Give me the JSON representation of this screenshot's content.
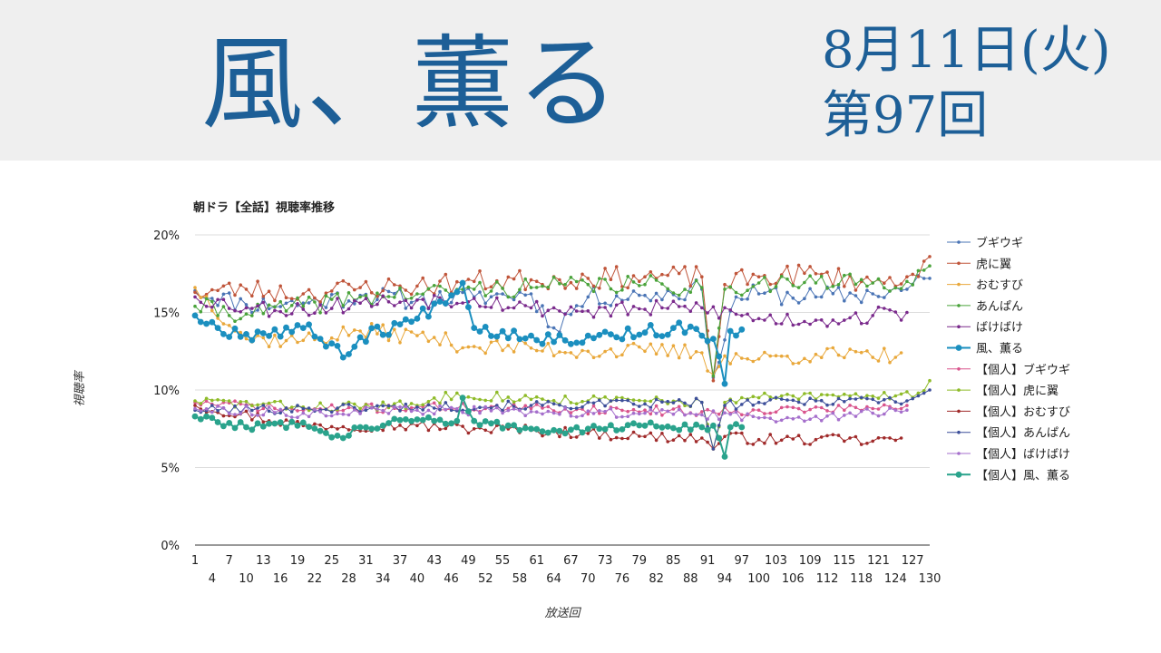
{
  "header": {
    "show_title": "風、薫る",
    "date": "8月11日(火)",
    "episode": "第97回"
  },
  "colors": {
    "banner_bg": "#efefef",
    "title_text": "#1d5f97"
  },
  "chart_data": {
    "type": "line",
    "title": "朝ドラ【全話】視聴率推移",
    "xlabel": "放送回",
    "ylabel": "視聴率",
    "ylim": [
      0,
      20
    ],
    "xlim": [
      1,
      130
    ],
    "grid": true,
    "legend_position": "right",
    "yticks": [
      "0%",
      "5%",
      "10%",
      "15%",
      "20%"
    ],
    "xticks_top": [
      "1",
      "7",
      "13",
      "19",
      "25",
      "31",
      "37",
      "43",
      "49",
      "55",
      "61",
      "67",
      "73",
      "79",
      "85",
      "91",
      "97",
      "103",
      "109",
      "115",
      "121",
      "127"
    ],
    "xticks_bottom": [
      "4",
      "10",
      "16",
      "22",
      "28",
      "34",
      "40",
      "46",
      "52",
      "58",
      "64",
      "70",
      "76",
      "82",
      "88",
      "94",
      "100",
      "106",
      "112",
      "118",
      "124",
      "130"
    ],
    "series": [
      {
        "name": "ブギウギ",
        "color": "#4a74b5",
        "width": 1,
        "r": 1.8,
        "keys": [
          [
            1,
            16.4
          ],
          [
            10,
            15.5
          ],
          [
            20,
            15.6
          ],
          [
            30,
            16.1
          ],
          [
            40,
            15.8
          ],
          [
            50,
            16.0
          ],
          [
            60,
            16.2
          ],
          [
            64,
            14.0
          ],
          [
            70,
            16.0
          ],
          [
            80,
            16.1
          ],
          [
            90,
            16.5
          ],
          [
            92,
            10.8
          ],
          [
            96,
            16.0
          ],
          [
            100,
            16.2
          ],
          [
            110,
            16.0
          ],
          [
            120,
            16.2
          ],
          [
            126,
            16.5
          ],
          [
            130,
            17.2
          ]
        ],
        "noise": 0.65,
        "seed": 11
      },
      {
        "name": "虎に翼",
        "color": "#c0553a",
        "width": 1,
        "r": 1.8,
        "keys": [
          [
            1,
            16.3
          ],
          [
            10,
            16.5
          ],
          [
            20,
            16.2
          ],
          [
            30,
            16.6
          ],
          [
            40,
            16.7
          ],
          [
            50,
            17.0
          ],
          [
            60,
            17.1
          ],
          [
            70,
            17.2
          ],
          [
            80,
            17.3
          ],
          [
            90,
            17.3
          ],
          [
            92,
            10.6
          ],
          [
            94,
            16.8
          ],
          [
            100,
            17.3
          ],
          [
            110,
            17.5
          ],
          [
            120,
            16.9
          ],
          [
            126,
            17.3
          ],
          [
            130,
            18.6
          ]
        ],
        "noise": 0.7,
        "seed": 23
      },
      {
        "name": "おむすび",
        "color": "#e9a83b",
        "width": 1,
        "r": 1.8,
        "keys": [
          [
            1,
            16.6
          ],
          [
            10,
            13.3
          ],
          [
            20,
            13.2
          ],
          [
            30,
            13.8
          ],
          [
            40,
            13.5
          ],
          [
            50,
            12.8
          ],
          [
            60,
            12.7
          ],
          [
            70,
            12.5
          ],
          [
            80,
            12.5
          ],
          [
            90,
            12.4
          ],
          [
            92,
            11.0
          ],
          [
            94,
            12.2
          ],
          [
            100,
            12.0
          ],
          [
            110,
            12.3
          ],
          [
            120,
            12.1
          ],
          [
            125,
            12.4
          ]
        ],
        "noise": 0.55,
        "seed": 37
      },
      {
        "name": "あんぱん",
        "color": "#4aa33b",
        "width": 1,
        "r": 1.8,
        "keys": [
          [
            1,
            15.4
          ],
          [
            10,
            14.9
          ],
          [
            20,
            15.4
          ],
          [
            30,
            16.0
          ],
          [
            40,
            16.2
          ],
          [
            50,
            16.5
          ],
          [
            60,
            16.6
          ],
          [
            70,
            16.8
          ],
          [
            80,
            16.8
          ],
          [
            90,
            16.6
          ],
          [
            92,
            10.9
          ],
          [
            94,
            16.5
          ],
          [
            100,
            16.9
          ],
          [
            110,
            16.9
          ],
          [
            120,
            16.9
          ],
          [
            126,
            17.0
          ],
          [
            130,
            18.0
          ]
        ],
        "noise": 0.6,
        "seed": 41
      },
      {
        "name": "ばけばけ",
        "color": "#7a2a8c",
        "width": 1,
        "r": 1.8,
        "keys": [
          [
            1,
            16.0
          ],
          [
            10,
            15.3
          ],
          [
            20,
            15.2
          ],
          [
            30,
            15.6
          ],
          [
            40,
            15.8
          ],
          [
            50,
            15.9
          ],
          [
            60,
            15.3
          ],
          [
            70,
            15.1
          ],
          [
            80,
            15.2
          ],
          [
            90,
            15.3
          ],
          [
            100,
            14.6
          ],
          [
            110,
            14.5
          ],
          [
            120,
            14.8
          ],
          [
            126,
            15.0
          ]
        ],
        "noise": 0.55,
        "seed": 53
      },
      {
        "name": "風、薫る",
        "color": "#1b8fbf",
        "width": 2,
        "r": 3.4,
        "keys": [
          [
            1,
            14.8
          ],
          [
            5,
            14.0
          ],
          [
            10,
            13.6
          ],
          [
            20,
            14.0
          ],
          [
            25,
            13.0
          ],
          [
            27,
            12.1
          ],
          [
            30,
            13.4
          ],
          [
            40,
            14.6
          ],
          [
            48,
            16.9
          ],
          [
            50,
            14.0
          ],
          [
            60,
            13.5
          ],
          [
            66,
            13.2
          ],
          [
            70,
            13.5
          ],
          [
            80,
            13.7
          ],
          [
            85,
            14.0
          ],
          [
            90,
            13.5
          ],
          [
            92,
            13.3
          ],
          [
            94,
            10.4
          ],
          [
            95,
            13.8
          ],
          [
            97,
            13.9
          ]
        ],
        "noise": 0.45,
        "seed": 67
      },
      {
        "name": "【個人】ブギウギ",
        "color": "#d9548c",
        "width": 1,
        "r": 1.8,
        "keys": [
          [
            1,
            9.2
          ],
          [
            20,
            8.7
          ],
          [
            40,
            8.9
          ],
          [
            60,
            8.8
          ],
          [
            80,
            8.7
          ],
          [
            90,
            8.6
          ],
          [
            100,
            8.7
          ],
          [
            120,
            8.8
          ],
          [
            126,
            9.0
          ]
        ],
        "noise": 0.3,
        "seed": 71
      },
      {
        "name": "【個人】虎に翼",
        "color": "#8ebb28",
        "width": 1,
        "r": 1.8,
        "keys": [
          [
            1,
            9.3
          ],
          [
            20,
            8.9
          ],
          [
            40,
            9.0
          ],
          [
            47,
            9.8
          ],
          [
            60,
            9.4
          ],
          [
            80,
            9.3
          ],
          [
            90,
            9.2
          ],
          [
            92,
            6.2
          ],
          [
            94,
            9.2
          ],
          [
            100,
            9.5
          ],
          [
            120,
            9.6
          ],
          [
            128,
            9.8
          ],
          [
            130,
            10.6
          ]
        ],
        "noise": 0.32,
        "seed": 83
      },
      {
        "name": "【個人】おむすび",
        "color": "#a02a2a",
        "width": 1,
        "r": 1.8,
        "keys": [
          [
            1,
            9.0
          ],
          [
            20,
            7.7
          ],
          [
            40,
            7.7
          ],
          [
            50,
            7.5
          ],
          [
            60,
            7.4
          ],
          [
            70,
            7.2
          ],
          [
            80,
            7.0
          ],
          [
            90,
            6.9
          ],
          [
            92,
            6.2
          ],
          [
            94,
            7.0
          ],
          [
            100,
            6.8
          ],
          [
            110,
            6.8
          ],
          [
            120,
            6.7
          ],
          [
            125,
            6.9
          ]
        ],
        "noise": 0.35,
        "seed": 97
      },
      {
        "name": "【個人】あんぱん",
        "color": "#3d4f9a",
        "width": 1,
        "r": 1.8,
        "keys": [
          [
            1,
            8.7
          ],
          [
            20,
            8.8
          ],
          [
            40,
            8.9
          ],
          [
            60,
            9.0
          ],
          [
            80,
            9.1
          ],
          [
            90,
            9.2
          ],
          [
            92,
            6.2
          ],
          [
            94,
            9.0
          ],
          [
            100,
            9.2
          ],
          [
            110,
            9.3
          ],
          [
            120,
            9.4
          ],
          [
            126,
            9.3
          ],
          [
            130,
            10.0
          ]
        ],
        "noise": 0.3,
        "seed": 101
      },
      {
        "name": "【個人】ばけばけ",
        "color": "#a56fcc",
        "width": 1,
        "r": 1.8,
        "keys": [
          [
            1,
            8.8
          ],
          [
            20,
            8.5
          ],
          [
            40,
            8.7
          ],
          [
            60,
            8.6
          ],
          [
            80,
            8.5
          ],
          [
            90,
            8.4
          ],
          [
            100,
            8.2
          ],
          [
            110,
            8.3
          ],
          [
            120,
            8.5
          ],
          [
            126,
            8.7
          ]
        ],
        "noise": 0.3,
        "seed": 113
      },
      {
        "name": "【個人】風、薫る",
        "color": "#2aa38c",
        "width": 2,
        "r": 3.4,
        "keys": [
          [
            1,
            8.3
          ],
          [
            10,
            7.6
          ],
          [
            20,
            7.9
          ],
          [
            27,
            6.9
          ],
          [
            30,
            7.6
          ],
          [
            40,
            8.1
          ],
          [
            47,
            8.0
          ],
          [
            48,
            9.5
          ],
          [
            50,
            8.0
          ],
          [
            60,
            7.5
          ],
          [
            66,
            7.2
          ],
          [
            70,
            7.5
          ],
          [
            80,
            7.7
          ],
          [
            90,
            7.6
          ],
          [
            92,
            7.7
          ],
          [
            94,
            5.7
          ],
          [
            95,
            7.6
          ],
          [
            97,
            7.6
          ]
        ],
        "noise": 0.25,
        "seed": 127
      }
    ]
  }
}
